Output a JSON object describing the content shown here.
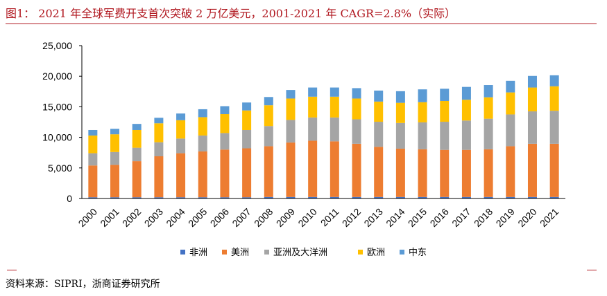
{
  "header": {
    "title": "图1：  2021 年全球军费开支首次突破 2 万亿美元，2001-2021 年 CAGR=2.8%（实际）"
  },
  "footer": {
    "source": "资料来源：SIPRI，浙商证券研究所"
  },
  "chart_data": {
    "type": "bar",
    "stacked": true,
    "categories": [
      "2000",
      "2001",
      "2002",
      "2003",
      "2004",
      "2005",
      "2006",
      "2007",
      "2008",
      "2009",
      "2010",
      "2011",
      "2012",
      "2013",
      "2014",
      "2015",
      "2016",
      "2017",
      "2018",
      "2019",
      "2020",
      "2021"
    ],
    "series": [
      {
        "name": "非洲",
        "color": "#4472c4",
        "values": [
          200,
          200,
          200,
          200,
          200,
          200,
          200,
          200,
          250,
          250,
          250,
          250,
          250,
          250,
          250,
          250,
          250,
          250,
          250,
          250,
          250,
          250
        ]
      },
      {
        "name": "美洲",
        "color": "#ed7d31",
        "values": [
          5200,
          5300,
          5900,
          6700,
          7200,
          7500,
          7800,
          8000,
          8300,
          8900,
          9200,
          9100,
          8700,
          8200,
          7900,
          7800,
          7700,
          7700,
          7800,
          8300,
          8700,
          8700
        ]
      },
      {
        "name": "亚洲及大洋洲",
        "color": "#a5a5a5",
        "values": [
          2000,
          2100,
          2200,
          2300,
          2400,
          2600,
          2700,
          3000,
          3300,
          3700,
          3800,
          3900,
          4000,
          4100,
          4200,
          4400,
          4600,
          4800,
          5000,
          5200,
          5300,
          5400
        ]
      },
      {
        "name": "欧洲",
        "color": "#ffc000",
        "values": [
          2900,
          2900,
          2900,
          3100,
          3000,
          3000,
          3100,
          3200,
          3400,
          3500,
          3400,
          3400,
          3400,
          3300,
          3300,
          3300,
          3400,
          3400,
          3500,
          3600,
          3900,
          4000
        ]
      },
      {
        "name": "中东",
        "color": "#5b9bd5",
        "values": [
          900,
          900,
          1000,
          900,
          1100,
          1300,
          1300,
          1300,
          1350,
          1400,
          1500,
          1500,
          1700,
          1800,
          1900,
          2100,
          2000,
          2100,
          2000,
          1900,
          1900,
          1800
        ]
      }
    ],
    "yticks": [
      "0",
      "5,000",
      "10,000",
      "15,000",
      "20,000",
      "25,000"
    ],
    "ylim": [
      0,
      25000
    ],
    "legend_position": "bottom",
    "grid": false
  }
}
